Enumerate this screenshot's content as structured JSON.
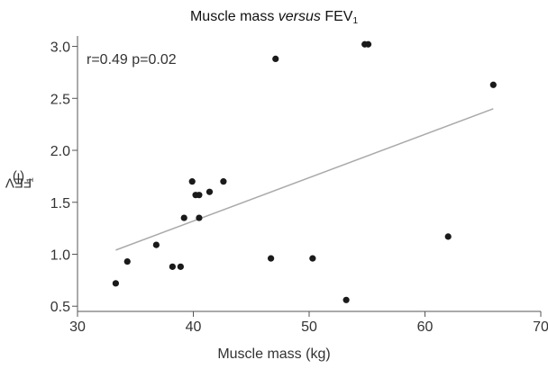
{
  "chart_data": {
    "type": "scatter",
    "title_prefix": "Muscle mass ",
    "title_versus": "versus",
    "title_fev": " FEV",
    "title_sub": "1",
    "xlabel": "Muscle mass (kg)",
    "ylabel_prefix": "FEV",
    "ylabel_sub": "1",
    "ylabel_suffix": " (l)",
    "annotation": "r=0.49 p=0.02",
    "xlim": [
      30,
      70
    ],
    "ylim": [
      0.45,
      3.1
    ],
    "xticks": [
      30,
      40,
      50,
      60,
      70
    ],
    "yticks": [
      "0.5",
      "1.0",
      "1.5",
      "2.0",
      "2.5",
      "3.0"
    ],
    "grid": false,
    "series": [
      {
        "points": [
          {
            "x": 33.3,
            "y": 0.72
          },
          {
            "x": 34.3,
            "y": 0.93
          },
          {
            "x": 36.8,
            "y": 1.09
          },
          {
            "x": 38.2,
            "y": 0.88
          },
          {
            "x": 38.9,
            "y": 0.88
          },
          {
            "x": 39.2,
            "y": 1.35
          },
          {
            "x": 39.9,
            "y": 1.7
          },
          {
            "x": 40.2,
            "y": 1.57
          },
          {
            "x": 40.5,
            "y": 1.57
          },
          {
            "x": 40.5,
            "y": 1.35
          },
          {
            "x": 41.4,
            "y": 1.6
          },
          {
            "x": 42.6,
            "y": 1.7
          },
          {
            "x": 46.7,
            "y": 0.96
          },
          {
            "x": 47.1,
            "y": 2.88
          },
          {
            "x": 50.3,
            "y": 0.96
          },
          {
            "x": 53.2,
            "y": 0.56
          },
          {
            "x": 54.8,
            "y": 3.02
          },
          {
            "x": 55.1,
            "y": 3.02
          },
          {
            "x": 62.0,
            "y": 1.17
          },
          {
            "x": 65.9,
            "y": 2.63
          }
        ],
        "color": "#1a1a1a"
      }
    ],
    "trendline": {
      "x": [
        33.3,
        65.9
      ],
      "y": [
        1.04,
        2.4
      ],
      "color": "#aaaaaa"
    }
  }
}
